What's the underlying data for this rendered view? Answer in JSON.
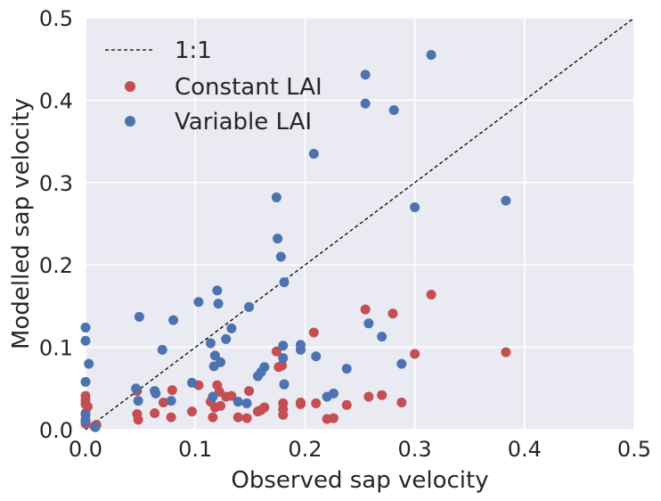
{
  "chart_data": {
    "type": "scatter",
    "title": "",
    "xlabel": "Observed sap velocity",
    "ylabel": "Modelled sap velocity",
    "xlim": [
      0,
      0.5
    ],
    "ylim": [
      0,
      0.5
    ],
    "xticks": [
      "0.0",
      "0.1",
      "0.2",
      "0.3",
      "0.4",
      "0.5"
    ],
    "yticks": [
      "0.0",
      "0.1",
      "0.2",
      "0.3",
      "0.4",
      "0.5"
    ],
    "grid": true,
    "legend_position": "top-left",
    "reference_line": {
      "label": "1:1",
      "x": [
        0,
        0.5
      ],
      "y": [
        0,
        0.5
      ],
      "style": "dashed",
      "color": "#000000"
    },
    "series": [
      {
        "name": "Constant LAI",
        "color": "#c44e52",
        "points": [
          [
            0.0,
            0.041
          ],
          [
            0.0,
            0.036
          ],
          [
            0.0,
            0.031
          ],
          [
            0.002,
            0.028
          ],
          [
            0.0,
            0.02
          ],
          [
            0.0,
            0.012
          ],
          [
            0.0,
            0.007
          ],
          [
            0.008,
            0.004
          ],
          [
            0.01,
            0.006
          ],
          [
            0.047,
            0.047
          ],
          [
            0.047,
            0.019
          ],
          [
            0.048,
            0.012
          ],
          [
            0.063,
            0.02
          ],
          [
            0.071,
            0.033
          ],
          [
            0.078,
            0.015
          ],
          [
            0.079,
            0.048
          ],
          [
            0.097,
            0.022
          ],
          [
            0.103,
            0.054
          ],
          [
            0.114,
            0.034
          ],
          [
            0.116,
            0.015
          ],
          [
            0.118,
            0.027
          ],
          [
            0.12,
            0.054
          ],
          [
            0.122,
            0.046
          ],
          [
            0.123,
            0.029
          ],
          [
            0.128,
            0.04
          ],
          [
            0.133,
            0.041
          ],
          [
            0.139,
            0.015
          ],
          [
            0.147,
            0.014
          ],
          [
            0.149,
            0.047
          ],
          [
            0.157,
            0.022
          ],
          [
            0.16,
            0.024
          ],
          [
            0.163,
            0.027
          ],
          [
            0.174,
            0.095
          ],
          [
            0.176,
            0.076
          ],
          [
            0.179,
            0.078
          ],
          [
            0.18,
            0.032
          ],
          [
            0.18,
            0.025
          ],
          [
            0.18,
            0.018
          ],
          [
            0.181,
            0.055
          ],
          [
            0.196,
            0.033
          ],
          [
            0.196,
            0.031
          ],
          [
            0.208,
            0.118
          ],
          [
            0.21,
            0.032
          ],
          [
            0.22,
            0.013
          ],
          [
            0.226,
            0.014
          ],
          [
            0.238,
            0.03
          ],
          [
            0.255,
            0.146
          ],
          [
            0.258,
            0.04
          ],
          [
            0.27,
            0.042
          ],
          [
            0.28,
            0.141
          ],
          [
            0.288,
            0.033
          ],
          [
            0.3,
            0.092
          ],
          [
            0.315,
            0.164
          ],
          [
            0.383,
            0.094
          ]
        ]
      },
      {
        "name": "Variable LAI",
        "color": "#4c72b0",
        "points": [
          [
            0.0,
            0.124
          ],
          [
            0.0,
            0.108
          ],
          [
            0.003,
            0.08
          ],
          [
            0.0,
            0.058
          ],
          [
            0.0,
            0.018
          ],
          [
            0.0,
            0.01
          ],
          [
            0.009,
            0.003
          ],
          [
            0.046,
            0.05
          ],
          [
            0.048,
            0.035
          ],
          [
            0.049,
            0.137
          ],
          [
            0.063,
            0.047
          ],
          [
            0.064,
            0.044
          ],
          [
            0.07,
            0.097
          ],
          [
            0.078,
            0.035
          ],
          [
            0.08,
            0.133
          ],
          [
            0.097,
            0.057
          ],
          [
            0.103,
            0.155
          ],
          [
            0.114,
            0.105
          ],
          [
            0.116,
            0.04
          ],
          [
            0.117,
            0.077
          ],
          [
            0.118,
            0.09
          ],
          [
            0.12,
            0.169
          ],
          [
            0.121,
            0.153
          ],
          [
            0.123,
            0.082
          ],
          [
            0.128,
            0.11
          ],
          [
            0.133,
            0.123
          ],
          [
            0.139,
            0.034
          ],
          [
            0.147,
            0.032
          ],
          [
            0.149,
            0.149
          ],
          [
            0.157,
            0.065
          ],
          [
            0.16,
            0.07
          ],
          [
            0.163,
            0.076
          ],
          [
            0.174,
            0.282
          ],
          [
            0.175,
            0.232
          ],
          [
            0.178,
            0.21
          ],
          [
            0.181,
            0.179
          ],
          [
            0.18,
            0.102
          ],
          [
            0.18,
            0.087
          ],
          [
            0.181,
            0.055
          ],
          [
            0.196,
            0.103
          ],
          [
            0.196,
            0.097
          ],
          [
            0.208,
            0.335
          ],
          [
            0.21,
            0.089
          ],
          [
            0.22,
            0.04
          ],
          [
            0.226,
            0.044
          ],
          [
            0.238,
            0.074
          ],
          [
            0.255,
            0.431
          ],
          [
            0.255,
            0.396
          ],
          [
            0.258,
            0.129
          ],
          [
            0.27,
            0.113
          ],
          [
            0.281,
            0.388
          ],
          [
            0.288,
            0.08
          ],
          [
            0.3,
            0.27
          ],
          [
            0.315,
            0.455
          ],
          [
            0.383,
            0.278
          ]
        ]
      }
    ]
  }
}
